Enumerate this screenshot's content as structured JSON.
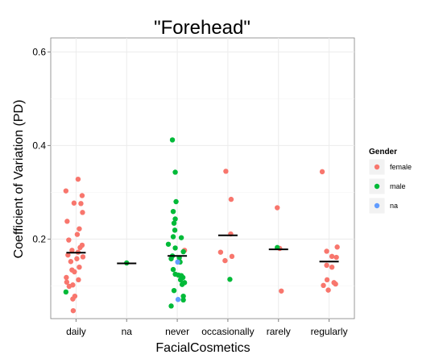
{
  "chart_data": {
    "type": "scatter",
    "title": "\"Forehead\"",
    "xlabel": "FacialCosmetics",
    "ylabel": "Coefficient of Variation (PD)",
    "categories": [
      "daily",
      "na",
      "never",
      "occasionally",
      "rarely",
      "regularly"
    ],
    "ylim": [
      0.03,
      0.63
    ],
    "yticks": [
      0.2,
      0.4,
      0.6
    ],
    "ytick_labels": [
      "0.2",
      "0.4",
      "0.6"
    ],
    "grid": true,
    "legend": {
      "title": "Gender",
      "placement": "right",
      "entries": [
        {
          "label": "female",
          "color": "#F8766D"
        },
        {
          "label": "male",
          "color": "#00BA38"
        },
        {
          "label": "na",
          "color": "#619CFF"
        }
      ]
    },
    "medians": [
      {
        "category": "daily",
        "value": 0.171
      },
      {
        "category": "na",
        "value": 0.148
      },
      {
        "category": "never",
        "value": 0.164
      },
      {
        "category": "occasionally",
        "value": 0.208
      },
      {
        "category": "rarely",
        "value": 0.178
      },
      {
        "category": "regularly",
        "value": 0.152
      }
    ],
    "series": [
      {
        "name": "female",
        "color": "#F8766D",
        "points": [
          {
            "category": "daily",
            "value": 0.328,
            "jitter": 0.05
          },
          {
            "category": "daily",
            "value": 0.303,
            "jitter": -0.25
          },
          {
            "category": "daily",
            "value": 0.293,
            "jitter": 0.15
          },
          {
            "category": "daily",
            "value": 0.277,
            "jitter": -0.05
          },
          {
            "category": "daily",
            "value": 0.276,
            "jitter": 0.12
          },
          {
            "category": "daily",
            "value": 0.257,
            "jitter": 0.16
          },
          {
            "category": "daily",
            "value": 0.238,
            "jitter": -0.22
          },
          {
            "category": "daily",
            "value": 0.222,
            "jitter": 0.08
          },
          {
            "category": "daily",
            "value": 0.21,
            "jitter": 0.03
          },
          {
            "category": "daily",
            "value": 0.198,
            "jitter": -0.18
          },
          {
            "category": "daily",
            "value": 0.187,
            "jitter": 0.15
          },
          {
            "category": "daily",
            "value": 0.182,
            "jitter": 0.1
          },
          {
            "category": "daily",
            "value": 0.176,
            "jitter": -0.1
          },
          {
            "category": "daily",
            "value": 0.172,
            "jitter": 0.05
          },
          {
            "category": "daily",
            "value": 0.166,
            "jitter": -0.2
          },
          {
            "category": "daily",
            "value": 0.162,
            "jitter": 0.17
          },
          {
            "category": "daily",
            "value": 0.158,
            "jitter": 0.02
          },
          {
            "category": "daily",
            "value": 0.152,
            "jitter": -0.13
          },
          {
            "category": "daily",
            "value": 0.14,
            "jitter": 0.08
          },
          {
            "category": "daily",
            "value": 0.134,
            "jitter": -0.1
          },
          {
            "category": "daily",
            "value": 0.13,
            "jitter": -0.04
          },
          {
            "category": "daily",
            "value": 0.118,
            "jitter": -0.24
          },
          {
            "category": "daily",
            "value": 0.113,
            "jitter": 0.06
          },
          {
            "category": "daily",
            "value": 0.108,
            "jitter": -0.23
          },
          {
            "category": "daily",
            "value": 0.102,
            "jitter": -0.08
          },
          {
            "category": "daily",
            "value": 0.099,
            "jitter": -0.17
          },
          {
            "category": "daily",
            "value": 0.078,
            "jitter": -0.03
          },
          {
            "category": "daily",
            "value": 0.072,
            "jitter": -0.08
          },
          {
            "category": "daily",
            "value": 0.047,
            "jitter": -0.07
          },
          {
            "category": "never",
            "value": 0.176,
            "jitter": 0.18
          },
          {
            "category": "occasionally",
            "value": 0.345,
            "jitter": -0.05
          },
          {
            "category": "occasionally",
            "value": 0.285,
            "jitter": 0.08
          },
          {
            "category": "occasionally",
            "value": 0.211,
            "jitter": 0.07
          },
          {
            "category": "occasionally",
            "value": 0.172,
            "jitter": -0.18
          },
          {
            "category": "occasionally",
            "value": 0.163,
            "jitter": 0.1
          },
          {
            "category": "occasionally",
            "value": 0.154,
            "jitter": -0.07
          },
          {
            "category": "rarely",
            "value": 0.267,
            "jitter": -0.03
          },
          {
            "category": "rarely",
            "value": 0.18,
            "jitter": 0.03
          },
          {
            "category": "rarely",
            "value": 0.089,
            "jitter": 0.07
          },
          {
            "category": "regularly",
            "value": 0.344,
            "jitter": -0.17
          },
          {
            "category": "regularly",
            "value": 0.183,
            "jitter": 0.2
          },
          {
            "category": "regularly",
            "value": 0.174,
            "jitter": -0.06
          },
          {
            "category": "regularly",
            "value": 0.163,
            "jitter": 0.07
          },
          {
            "category": "regularly",
            "value": 0.161,
            "jitter": 0.18
          },
          {
            "category": "regularly",
            "value": 0.144,
            "jitter": -0.06
          },
          {
            "category": "regularly",
            "value": 0.14,
            "jitter": 0.07
          },
          {
            "category": "regularly",
            "value": 0.113,
            "jitter": -0.05
          },
          {
            "category": "regularly",
            "value": 0.107,
            "jitter": 0.12
          },
          {
            "category": "regularly",
            "value": 0.104,
            "jitter": 0.16
          },
          {
            "category": "regularly",
            "value": 0.101,
            "jitter": -0.14
          },
          {
            "category": "regularly",
            "value": 0.091,
            "jitter": -0.02
          }
        ]
      },
      {
        "name": "male",
        "color": "#00BA38",
        "points": [
          {
            "category": "daily",
            "value": 0.087,
            "jitter": -0.25
          },
          {
            "category": "na",
            "value": 0.149,
            "jitter": 0.0
          },
          {
            "category": "never",
            "value": 0.412,
            "jitter": -0.12
          },
          {
            "category": "never",
            "value": 0.343,
            "jitter": -0.05
          },
          {
            "category": "never",
            "value": 0.28,
            "jitter": -0.03
          },
          {
            "category": "never",
            "value": 0.259,
            "jitter": -0.1
          },
          {
            "category": "never",
            "value": 0.243,
            "jitter": -0.05
          },
          {
            "category": "never",
            "value": 0.234,
            "jitter": -0.08
          },
          {
            "category": "never",
            "value": 0.219,
            "jitter": -0.06
          },
          {
            "category": "never",
            "value": 0.205,
            "jitter": -0.1
          },
          {
            "category": "never",
            "value": 0.203,
            "jitter": 0.1
          },
          {
            "category": "never",
            "value": 0.189,
            "jitter": -0.22
          },
          {
            "category": "never",
            "value": 0.181,
            "jitter": -0.05
          },
          {
            "category": "never",
            "value": 0.173,
            "jitter": 0.15
          },
          {
            "category": "never",
            "value": 0.164,
            "jitter": -0.12
          },
          {
            "category": "never",
            "value": 0.16,
            "jitter": 0.05
          },
          {
            "category": "never",
            "value": 0.158,
            "jitter": -0.15
          },
          {
            "category": "never",
            "value": 0.151,
            "jitter": 0.07
          },
          {
            "category": "never",
            "value": 0.135,
            "jitter": -0.1
          },
          {
            "category": "never",
            "value": 0.125,
            "jitter": -0.05
          },
          {
            "category": "never",
            "value": 0.123,
            "jitter": 0.03
          },
          {
            "category": "never",
            "value": 0.122,
            "jitter": 0.1
          },
          {
            "category": "never",
            "value": 0.118,
            "jitter": 0.14
          },
          {
            "category": "never",
            "value": 0.113,
            "jitter": 0.08
          },
          {
            "category": "never",
            "value": 0.107,
            "jitter": 0.18
          },
          {
            "category": "never",
            "value": 0.103,
            "jitter": 0.12
          },
          {
            "category": "never",
            "value": 0.09,
            "jitter": -0.08
          },
          {
            "category": "never",
            "value": 0.078,
            "jitter": 0.15
          },
          {
            "category": "never",
            "value": 0.07,
            "jitter": 0.15
          },
          {
            "category": "never",
            "value": 0.057,
            "jitter": -0.15
          },
          {
            "category": "occasionally",
            "value": 0.114,
            "jitter": 0.05
          },
          {
            "category": "rarely",
            "value": 0.182,
            "jitter": -0.03
          }
        ]
      },
      {
        "name": "na",
        "color": "#619CFF",
        "points": [
          {
            "category": "never",
            "value": 0.151,
            "jitter": 0.01
          },
          {
            "category": "never",
            "value": 0.071,
            "jitter": 0.02
          }
        ]
      }
    ]
  }
}
